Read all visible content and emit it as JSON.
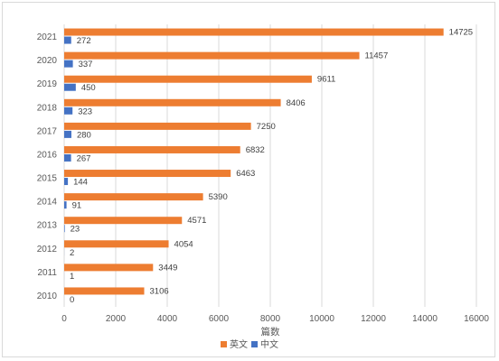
{
  "chart_data": {
    "type": "bar",
    "orientation": "horizontal",
    "categories": [
      "2010",
      "2011",
      "2012",
      "2013",
      "2014",
      "2015",
      "2016",
      "2017",
      "2018",
      "2019",
      "2020",
      "2021"
    ],
    "series": [
      {
        "name": "英文",
        "color": "#ed7d31",
        "values": [
          3106,
          3449,
          4054,
          4571,
          5390,
          6463,
          6832,
          7250,
          8406,
          9611,
          11457,
          14725
        ]
      },
      {
        "name": "中文",
        "color": "#4472c4",
        "values": [
          0,
          1,
          2,
          23,
          91,
          144,
          267,
          280,
          323,
          450,
          337,
          272
        ]
      }
    ],
    "title": "",
    "xlabel": "篇数",
    "ylabel": "",
    "xlim": [
      0,
      16000
    ],
    "x_ticks": [
      "0",
      "2000",
      "4000",
      "6000",
      "8000",
      "10000",
      "12000",
      "14000",
      "16000"
    ],
    "grid": "vertical",
    "legend_position": "bottom",
    "data_labels": true
  }
}
